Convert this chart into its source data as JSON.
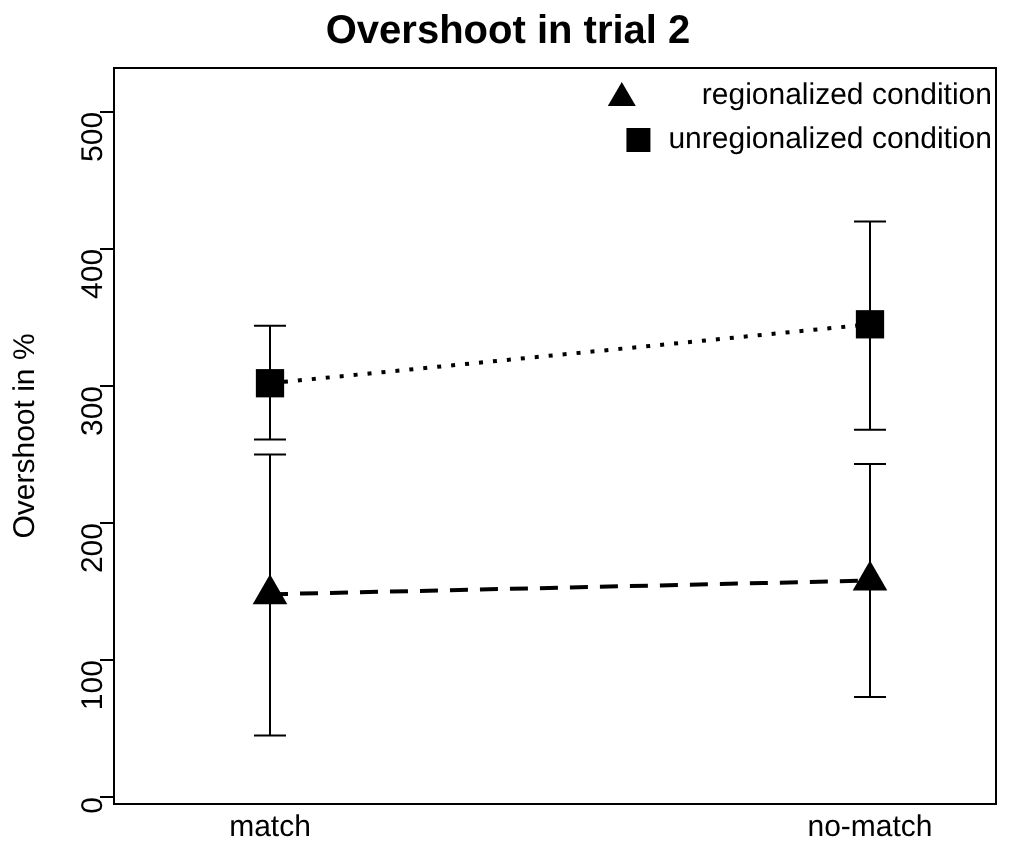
{
  "chart_data": {
    "type": "line",
    "title": "Overshoot in trial 2",
    "ylabel": "Overshoot in %",
    "categories": [
      "match",
      "no-match"
    ],
    "series": [
      {
        "name": "regionalized condition",
        "color": "#000000",
        "marker": "triangle",
        "line_style": "dashed",
        "values": [
          148,
          158
        ],
        "errors": [
          [
            45,
            250
          ],
          [
            73,
            243
          ]
        ]
      },
      {
        "name": "unregionalized condition",
        "color": "#000000",
        "marker": "square",
        "line_style": "dotted",
        "values": [
          302,
          345
        ],
        "errors": [
          [
            261,
            344
          ],
          [
            268,
            420
          ]
        ]
      }
    ],
    "ylim": [
      -5,
      532
    ],
    "yticks": [
      0,
      100,
      200,
      300,
      400,
      500
    ],
    "grid": false,
    "legend": "top right"
  }
}
